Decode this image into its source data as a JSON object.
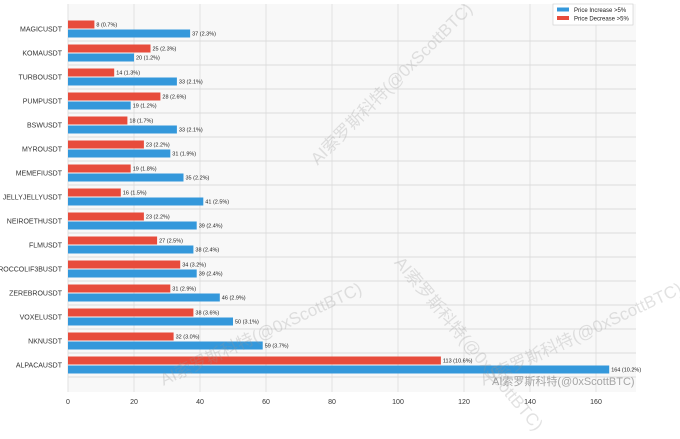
{
  "chart_data": {
    "type": "bar",
    "orientation": "horizontal",
    "categories": [
      "MAGICUSDT",
      "KOMAUSDT",
      "TURBOUSDT",
      "PUMPUSDT",
      "BSWUSDT",
      "MYROUSDT",
      "MEMEFIUSDT",
      "JELLYJELLYUSDT",
      "NEIROETHUSDT",
      "FLMUSDT",
      "BROCCOLIF3BUSDT",
      "ZEREBROUSDT",
      "VOXELUSDT",
      "NKNUSDT",
      "ALPACAUSDT"
    ],
    "series": [
      {
        "name": "Price Increase >5%",
        "color": "#3498db",
        "values": [
          37,
          20,
          33,
          19,
          33,
          31,
          35,
          41,
          39,
          38,
          39,
          46,
          50,
          59,
          164
        ],
        "labels": [
          "37 (2.3%)",
          "20 (1.2%)",
          "33 (2.1%)",
          "19 (1.2%)",
          "33 (2.1%)",
          "31 (1.9%)",
          "35 (2.2%)",
          "41 (2.5%)",
          "39 (2.4%)",
          "38 (2.4%)",
          "39 (2.4%)",
          "46 (2.9%)",
          "50 (3.1%)",
          "59 (3.7%)",
          "164 (10.2%)"
        ]
      },
      {
        "name": "Price Decrease >5%",
        "color": "#e74c3c",
        "values": [
          8,
          25,
          14,
          28,
          18,
          23,
          19,
          16,
          23,
          27,
          34,
          31,
          38,
          32,
          113
        ],
        "labels": [
          "8 (0.7%)",
          "25 (2.3%)",
          "14 (1.3%)",
          "28 (2.6%)",
          "18 (1.7%)",
          "23 (2.2%)",
          "19 (1.8%)",
          "16 (1.5%)",
          "23 (2.2%)",
          "27 (2.5%)",
          "34 (3.2%)",
          "31 (2.9%)",
          "38 (3.6%)",
          "32 (3.0%)",
          "113 (10.6%)"
        ]
      }
    ],
    "xticks": [
      0,
      20,
      40,
      60,
      80,
      100,
      120,
      140,
      160
    ],
    "xlim": [
      0,
      172
    ],
    "title": "",
    "xlabel": "",
    "ylabel": "",
    "grid": true,
    "legend": "top-right"
  },
  "watermark": "AI索罗斯科特(@0xScottBTC)"
}
